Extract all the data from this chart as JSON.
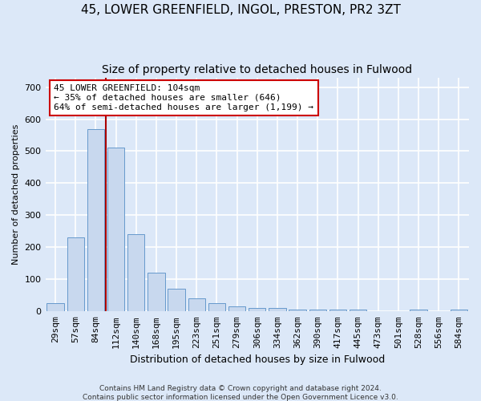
{
  "title_line1": "45, LOWER GREENFIELD, INGOL, PRESTON, PR2 3ZT",
  "title_line2": "Size of property relative to detached houses in Fulwood",
  "xlabel": "Distribution of detached houses by size in Fulwood",
  "ylabel": "Number of detached properties",
  "categories": [
    "29sqm",
    "57sqm",
    "84sqm",
    "112sqm",
    "140sqm",
    "168sqm",
    "195sqm",
    "223sqm",
    "251sqm",
    "279sqm",
    "306sqm",
    "334sqm",
    "362sqm",
    "390sqm",
    "417sqm",
    "445sqm",
    "473sqm",
    "501sqm",
    "528sqm",
    "556sqm",
    "584sqm"
  ],
  "values": [
    25,
    232,
    570,
    510,
    242,
    122,
    70,
    40,
    25,
    15,
    10,
    10,
    5,
    5,
    6,
    5,
    0,
    0,
    6,
    0,
    5
  ],
  "bar_color": "#c8d8ee",
  "bar_edge_color": "#6699cc",
  "vline_color": "#aa0000",
  "annotation_text": "45 LOWER GREENFIELD: 104sqm\n← 35% of detached houses are smaller (646)\n64% of semi-detached houses are larger (1,199) →",
  "annotation_box_facecolor": "#ffffff",
  "annotation_box_edgecolor": "#cc0000",
  "ylim": [
    0,
    730
  ],
  "yticks": [
    0,
    100,
    200,
    300,
    400,
    500,
    600,
    700
  ],
  "footnote_line1": "Contains HM Land Registry data © Crown copyright and database right 2024.",
  "footnote_line2": "Contains public sector information licensed under the Open Government Licence v3.0.",
  "background_color": "#dce8f8",
  "grid_color": "#ffffff",
  "title1_fontsize": 11,
  "title2_fontsize": 10,
  "xlabel_fontsize": 9,
  "ylabel_fontsize": 8,
  "tick_fontsize": 8,
  "annot_fontsize": 8,
  "footnote_fontsize": 6.5
}
